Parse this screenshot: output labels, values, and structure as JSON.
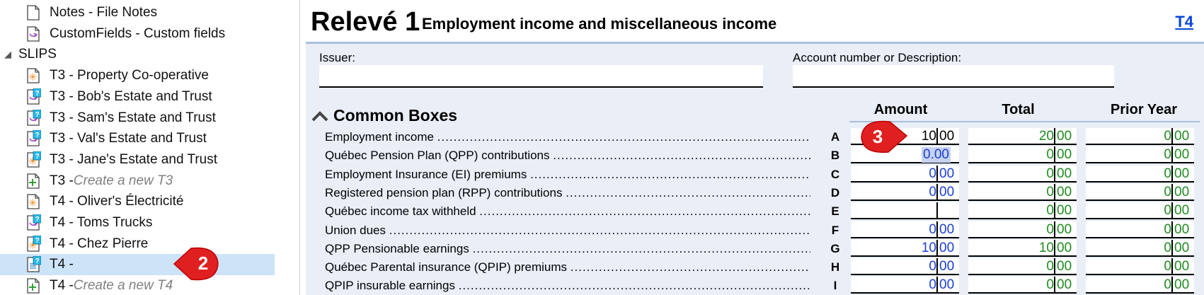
{
  "tree": {
    "items": [
      {
        "label": "Notes - File Notes",
        "muted": "",
        "icon": "document-icon",
        "indent": 1
      },
      {
        "label": "CustomFields - Custom fields",
        "muted": "",
        "icon": "custom-fields-icon",
        "indent": 1
      },
      {
        "label": "SLIPS",
        "muted": "",
        "icon": "",
        "indent": 0
      },
      {
        "label": "T3 - Property Co-operative",
        "muted": "",
        "icon": "asterisk-slip-icon",
        "indent": 1
      },
      {
        "label": "T3 - Bob's Estate and Trust",
        "muted": "",
        "icon": "question-slip-icon",
        "indent": 1
      },
      {
        "label": "T3 - Sam's Estate and Trust",
        "muted": "",
        "icon": "question-slip-icon",
        "indent": 1
      },
      {
        "label": "T3 - Val's Estate and Trust",
        "muted": "",
        "icon": "question-slip-icon",
        "indent": 1
      },
      {
        "label": "T3 - Jane's Estate and Trust",
        "muted": "",
        "icon": "asterisk-question-slip-icon",
        "indent": 1
      },
      {
        "label": "T3 - ",
        "muted": "Create a new T3",
        "icon": "plus-slip-icon",
        "indent": 1
      },
      {
        "label": "T4 - Oliver's Électricité",
        "muted": "",
        "icon": "asterisk-slip-icon",
        "indent": 1
      },
      {
        "label": "T4 - Toms Trucks",
        "muted": "",
        "icon": "question-slip-icon",
        "indent": 1
      },
      {
        "label": "T4 - Chez Pierre",
        "muted": "",
        "icon": "asterisk-question-slip-icon",
        "indent": 1
      },
      {
        "label": "T4 - ",
        "muted": "",
        "icon": "selected-slip-icon",
        "indent": 1
      },
      {
        "label": "T4 - ",
        "muted": "Create a new T4",
        "icon": "plus-slip-icon",
        "indent": 1
      }
    ],
    "expander": "◢",
    "badge": "2"
  },
  "form": {
    "title_big": "Relevé 1",
    "title_sub": "Employment income and miscellaneous income",
    "link": "T4",
    "issuer_label": "Issuer:",
    "account_label": "Account number or Description:",
    "section": "Common Boxes",
    "columns": [
      "Amount",
      "Total",
      "Prior Year"
    ],
    "badge": "3",
    "rows": [
      {
        "label": "Employment income",
        "box": "A",
        "amount": [
          "10",
          "00"
        ],
        "total": [
          "20",
          "00"
        ],
        "prior": [
          "0",
          "00"
        ]
      },
      {
        "label": "Québec Pension Plan (QPP) contributions",
        "box": "B",
        "amount_edit": "0.00",
        "total": [
          "0",
          "00"
        ],
        "prior": [
          "0",
          "00"
        ]
      },
      {
        "label": "Employment Insurance (EI) premiums",
        "box": "C",
        "amount": [
          "0",
          "00"
        ],
        "total": [
          "0",
          "00"
        ],
        "prior": [
          "0",
          "00"
        ]
      },
      {
        "label": "Registered pension plan (RPP) contributions",
        "box": "D",
        "amount": [
          "0",
          "00"
        ],
        "total": [
          "0",
          "00"
        ],
        "prior": [
          "0",
          "00"
        ]
      },
      {
        "label": "Québec income tax withheld",
        "box": "E",
        "amount": [
          "",
          ""
        ],
        "total": [
          "0",
          "00"
        ],
        "prior": [
          "0",
          "00"
        ]
      },
      {
        "label": "Union dues",
        "box": "F",
        "amount": [
          "0",
          "00"
        ],
        "total": [
          "0",
          "00"
        ],
        "prior": [
          "0",
          "00"
        ]
      },
      {
        "label": "QPP Pensionable earnings",
        "box": "G",
        "amount": [
          "10",
          "00"
        ],
        "total": [
          "10",
          "00"
        ],
        "prior": [
          "0",
          "00"
        ]
      },
      {
        "label": "Québec Parental insurance (QPIP) premiums",
        "box": "H",
        "amount": [
          "0",
          "00"
        ],
        "total": [
          "0",
          "00"
        ],
        "prior": [
          "0",
          "00"
        ]
      },
      {
        "label": "QPIP insurable earnings",
        "box": "I",
        "amount": [
          "0",
          "00"
        ],
        "total": [
          "0",
          "00"
        ],
        "prior": [
          "0",
          "00"
        ]
      }
    ]
  },
  "colors": {
    "accent": "#e02020",
    "link": "#0645d8",
    "amount": "#1a3fd6",
    "total": "#1f8a1f",
    "selection": "#cce3f8"
  }
}
